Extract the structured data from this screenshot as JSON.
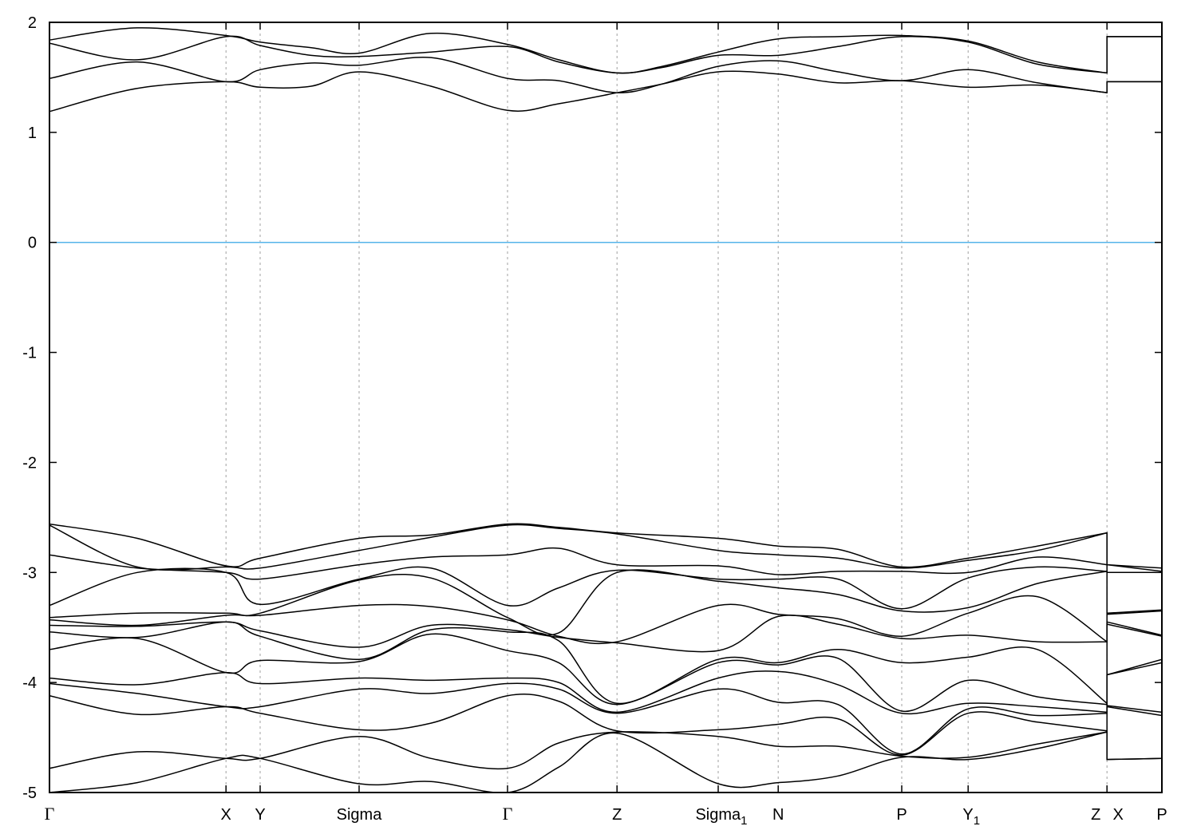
{
  "chart_data": {
    "type": "line",
    "title": "",
    "xlabel": "",
    "ylabel": "",
    "ylim": [
      -5,
      2
    ],
    "xlim": [
      0,
      3.485
    ],
    "grid": "vertical dashed lines at high-symmetry points",
    "legend": "none",
    "yticks": [
      "-5",
      "-4",
      "-3",
      "-2",
      "-1",
      "0",
      "1",
      "2"
    ],
    "ytick_values": [
      -5,
      -4,
      -3,
      -2,
      -1,
      0,
      1,
      2
    ],
    "xticks": [
      {
        "label": "Γ",
        "sub": "",
        "k": 0
      },
      {
        "label": "X",
        "sub": "",
        "k": 0.553
      },
      {
        "label": "Y",
        "sub": "",
        "k": 0.66
      },
      {
        "label": "Sigma",
        "sub": "",
        "k": 0.97
      },
      {
        "label": "Γ",
        "sub": "",
        "k": 1.435
      },
      {
        "label": "Z",
        "sub": "",
        "k": 1.778
      },
      {
        "label": "Sigma",
        "sub": "1",
        "k": 2.095
      },
      {
        "label": "N",
        "sub": "",
        "k": 2.283
      },
      {
        "label": "P",
        "sub": "",
        "k": 2.67
      },
      {
        "label": "Y",
        "sub": "1",
        "k": 2.878
      },
      {
        "label": "Z",
        "sub": "",
        "k": 3.313
      },
      {
        "label": "X",
        "sub": "",
        "k": 3.313
      },
      {
        "label": "P",
        "sub": "",
        "k": 3.485
      }
    ],
    "fermi_level": 0,
    "colors": {
      "bands": "#000000",
      "fermi_line": "#56b4e9",
      "grid": "#a0a0a0"
    },
    "conduction_bands": [
      {
        "k": 0,
        "E": [
          1.84,
          1.81,
          1.49,
          1.19
        ]
      },
      {
        "k": 0.275,
        "E": [
          1.95,
          1.66,
          1.64,
          1.4
        ]
      },
      {
        "k": 0.553,
        "E": [
          1.88,
          1.87,
          1.46,
          1.46
        ]
      },
      {
        "k": 0.66,
        "E": [
          1.82,
          1.79,
          1.57,
          1.41
        ]
      },
      {
        "k": 0.82,
        "E": [
          1.77,
          1.7,
          1.63,
          1.42
        ]
      },
      {
        "k": 0.97,
        "E": [
          1.72,
          1.69,
          1.61,
          1.55
        ]
      },
      {
        "k": 1.195,
        "E": [
          1.9,
          1.73,
          1.68,
          1.42
        ]
      },
      {
        "k": 1.435,
        "E": [
          1.8,
          1.78,
          1.49,
          1.2
        ]
      },
      {
        "k": 1.595,
        "E": [
          1.66,
          1.64,
          1.47,
          1.26
        ]
      },
      {
        "k": 1.778,
        "E": [
          1.54,
          1.54,
          1.36,
          1.36
        ]
      },
      {
        "k": 1.92,
        "E": [
          1.6,
          1.59,
          1.44,
          1.44
        ]
      },
      {
        "k": 2.095,
        "E": [
          1.73,
          1.7,
          1.6,
          1.55
        ]
      },
      {
        "k": 2.283,
        "E": [
          1.85,
          1.7,
          1.65,
          1.53
        ]
      },
      {
        "k": 2.47,
        "E": [
          1.87,
          1.78,
          1.55,
          1.45
        ]
      },
      {
        "k": 2.67,
        "E": [
          1.88,
          1.87,
          1.47,
          1.47
        ]
      },
      {
        "k": 2.878,
        "E": [
          1.83,
          1.82,
          1.57,
          1.41
        ]
      },
      {
        "k": 3.095,
        "E": [
          1.64,
          1.62,
          1.45,
          1.43
        ]
      },
      {
        "k": 3.313,
        "E": [
          1.54,
          1.54,
          1.36,
          1.36
        ]
      },
      {
        "k": 3.313,
        "E": [
          1.87,
          1.87,
          1.46,
          1.46
        ]
      },
      {
        "k": 3.485,
        "E": [
          1.87,
          1.87,
          1.46,
          1.46
        ]
      }
    ],
    "valence_bands": [
      {
        "k": 0,
        "E": [
          -2.56,
          -2.57,
          -2.84,
          -3.3,
          -3.41,
          -3.43,
          -3.48,
          -3.54,
          -3.7,
          -3.96,
          -4.01,
          -4.12,
          -4.78,
          -5.0
        ]
      },
      {
        "k": 0.275,
        "E": [
          -2.69,
          -2.95,
          -2.96,
          -3.0,
          -3.37,
          -3.48,
          -3.49,
          -3.59,
          -3.6,
          -4.02,
          -4.1,
          -4.29,
          -4.63,
          -4.91
        ]
      },
      {
        "k": 0.553,
        "E": [
          -2.94,
          -2.95,
          -3.0,
          -3.0,
          -3.37,
          -3.39,
          -3.45,
          -3.45,
          -3.91,
          -3.91,
          -4.22,
          -4.22,
          -4.69,
          -4.69
        ]
      },
      {
        "k": 0.66,
        "E": [
          -2.87,
          -2.96,
          -3.06,
          -3.29,
          -3.37,
          -3.39,
          -3.53,
          -3.58,
          -3.8,
          -4.01,
          -4.22,
          -4.28,
          -4.69,
          -4.69
        ]
      },
      {
        "k": 0.97,
        "E": [
          -2.69,
          -2.8,
          -2.93,
          -3.06,
          -3.07,
          -3.3,
          -3.68,
          -3.79,
          -3.81,
          -3.96,
          -4.06,
          -4.43,
          -4.49,
          -4.92
        ]
      },
      {
        "k": 1.195,
        "E": [
          -2.66,
          -2.68,
          -2.86,
          -2.96,
          -3.05,
          -3.31,
          -3.48,
          -3.52,
          -3.56,
          -3.98,
          -4.1,
          -4.37,
          -4.69,
          -4.9
        ]
      },
      {
        "k": 1.435,
        "E": [
          -2.56,
          -2.57,
          -2.84,
          -3.3,
          -3.41,
          -3.43,
          -3.52,
          -3.54,
          -3.71,
          -3.96,
          -4.01,
          -4.12,
          -4.78,
          -5.0
        ]
      },
      {
        "k": 1.595,
        "E": [
          -2.59,
          -2.6,
          -2.78,
          -3.14,
          -3.55,
          -3.58,
          -3.59,
          -3.62,
          -3.82,
          -4.0,
          -4.06,
          -4.17,
          -4.55,
          -4.77
        ]
      },
      {
        "k": 1.778,
        "E": [
          -2.64,
          -2.65,
          -2.93,
          -2.98,
          -3.0,
          -3.63,
          -3.64,
          -4.19,
          -4.2,
          -4.27,
          -4.28,
          -4.44,
          -4.45,
          -4.46
        ]
      },
      {
        "k": 2.095,
        "E": [
          -2.69,
          -2.8,
          -2.94,
          -3.06,
          -3.08,
          -3.3,
          -3.71,
          -3.79,
          -3.82,
          -3.96,
          -4.06,
          -4.43,
          -4.49,
          -4.92
        ]
      },
      {
        "k": 2.283,
        "E": [
          -2.76,
          -2.84,
          -3.02,
          -3.06,
          -3.14,
          -3.38,
          -3.4,
          -3.82,
          -3.84,
          -3.9,
          -4.18,
          -4.38,
          -4.58,
          -4.91
        ]
      },
      {
        "k": 2.47,
        "E": [
          -2.79,
          -2.87,
          -2.99,
          -3.06,
          -3.2,
          -3.42,
          -3.47,
          -3.7,
          -3.78,
          -4.02,
          -4.2,
          -4.33,
          -4.58,
          -4.85
        ]
      },
      {
        "k": 2.67,
        "E": [
          -2.95,
          -2.96,
          -2.99,
          -3.33,
          -3.35,
          -3.58,
          -3.6,
          -3.82,
          -4.26,
          -4.28,
          -4.65,
          -4.66,
          -4.67,
          -4.68
        ]
      },
      {
        "k": 2.878,
        "E": [
          -2.87,
          -2.89,
          -3.0,
          -3.05,
          -3.32,
          -3.37,
          -3.57,
          -3.77,
          -3.98,
          -4.19,
          -4.24,
          -4.28,
          -4.68,
          -4.7
        ]
      },
      {
        "k": 3.095,
        "E": [
          -2.76,
          -2.8,
          -2.86,
          -2.95,
          -3.1,
          -3.22,
          -3.63,
          -3.7,
          -4.13,
          -4.22,
          -4.3,
          -4.36,
          -4.56,
          -4.6
        ]
      },
      {
        "k": 3.313,
        "E": [
          -2.64,
          -2.64,
          -2.93,
          -2.99,
          -2.99,
          -3.63,
          -3.63,
          -4.19,
          -4.2,
          -4.27,
          -4.28,
          -4.44,
          -4.45,
          -4.45
        ]
      },
      {
        "k": 3.313,
        "E": [
          -2.93,
          -2.93,
          -3.0,
          -3.0,
          -3.37,
          -3.38,
          -3.45,
          -3.47,
          -3.93,
          -3.93,
          -4.21,
          -4.22,
          -4.7,
          -4.7
        ]
      },
      {
        "k": 3.485,
        "E": [
          -2.96,
          -2.99,
          -3.0,
          -3.0,
          -3.34,
          -3.35,
          -3.57,
          -3.58,
          -3.79,
          -3.82,
          -4.27,
          -4.3,
          -4.69,
          -4.69
        ]
      }
    ]
  }
}
